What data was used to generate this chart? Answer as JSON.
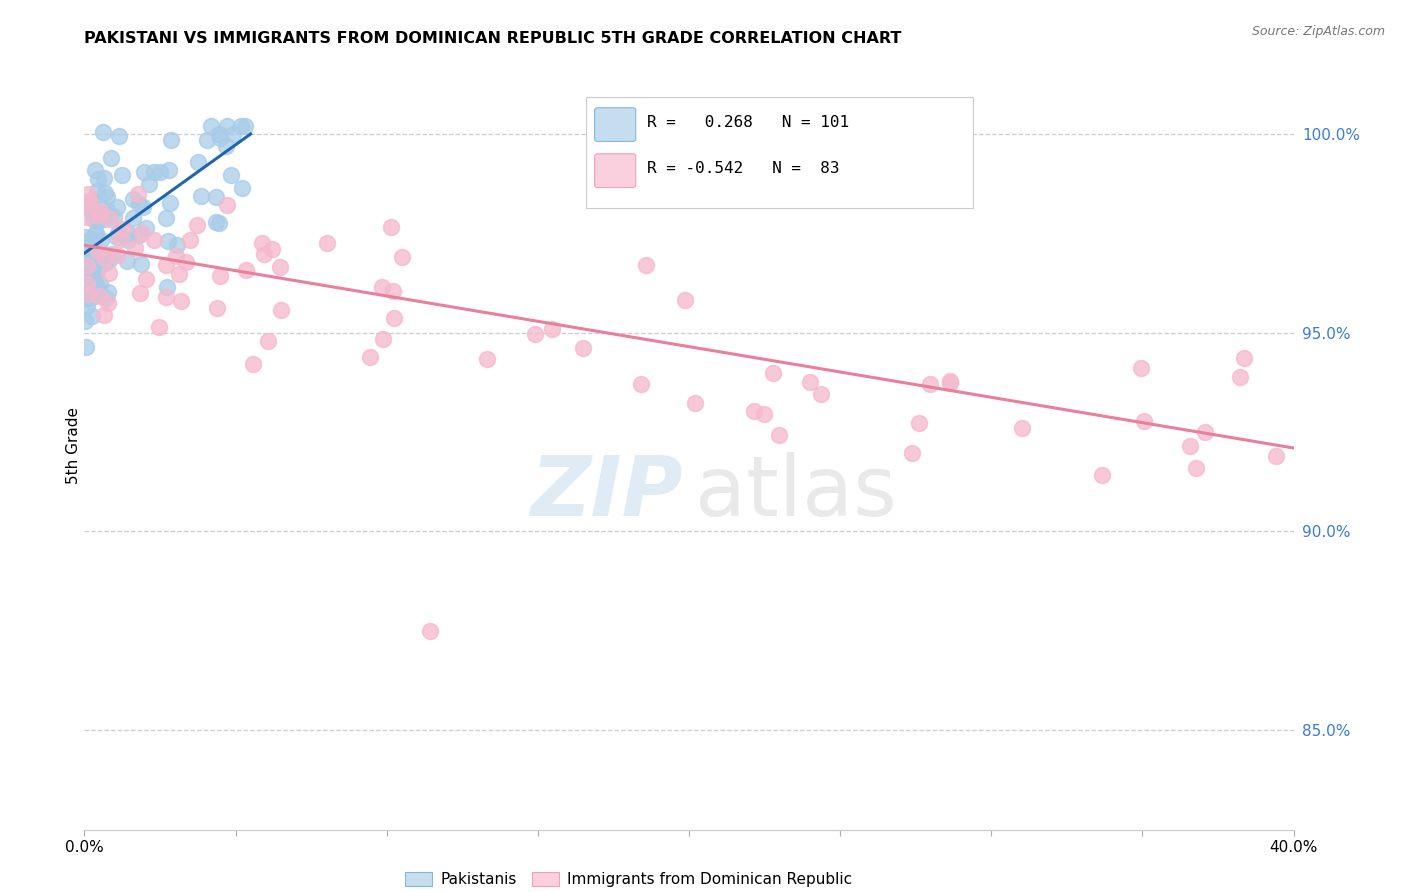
{
  "title": "PAKISTANI VS IMMIGRANTS FROM DOMINICAN REPUBLIC 5TH GRADE CORRELATION CHART",
  "source": "Source: ZipAtlas.com",
  "ylabel": "5th Grade",
  "y_ticks": [
    "100.0%",
    "95.0%",
    "90.0%",
    "85.0%"
  ],
  "y_tick_vals": [
    1.0,
    0.95,
    0.9,
    0.85
  ],
  "x_range": [
    0.0,
    0.4
  ],
  "y_range": [
    0.825,
    1.018
  ],
  "blue_R": 0.268,
  "blue_N": 101,
  "pink_R": -0.542,
  "pink_N": 83,
  "blue_scatter_color": "#a8cce8",
  "pink_scatter_color": "#f5b8cc",
  "blue_line_color": "#2166ac",
  "pink_line_color": "#e8809a",
  "legend_label_blue": "Pakistanis",
  "legend_label_pink": "Immigrants from Dominican Republic",
  "blue_line_x0": 0.0,
  "blue_line_x1": 0.055,
  "blue_line_y0": 0.97,
  "blue_line_y1": 1.0,
  "pink_line_x0": 0.0,
  "pink_line_x1": 0.4,
  "pink_line_y0": 0.972,
  "pink_line_y1": 0.921
}
